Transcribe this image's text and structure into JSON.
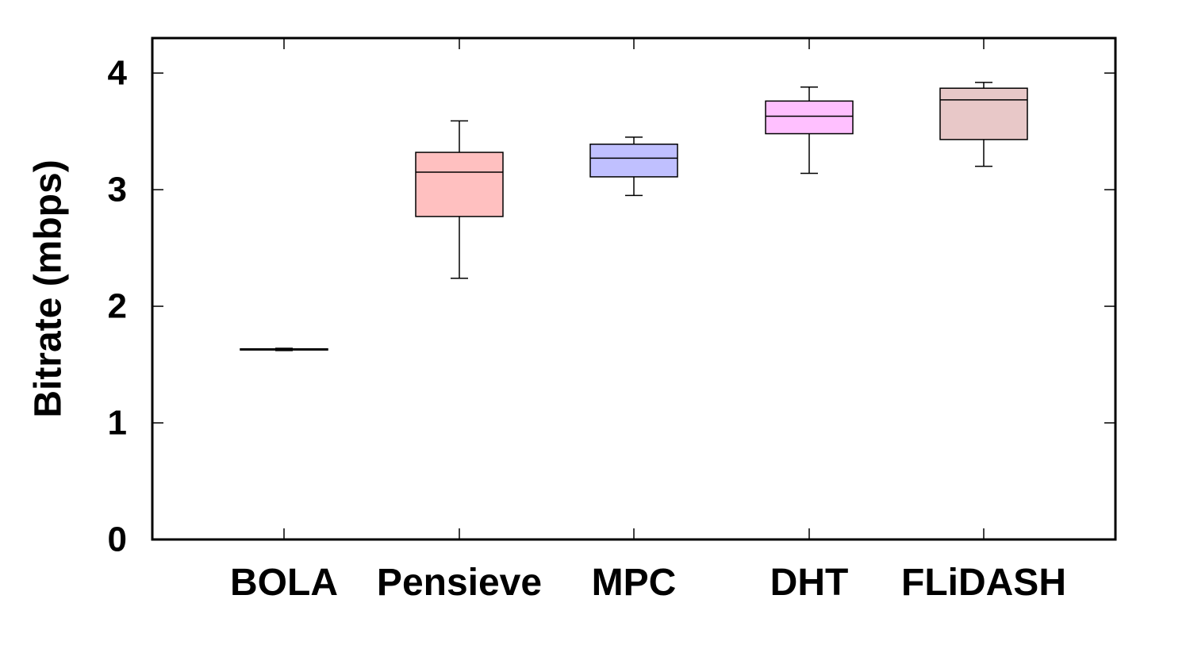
{
  "chart_data": {
    "type": "box",
    "title": "",
    "xlabel": "",
    "ylabel": "Bitrate (mbps)",
    "ylim": [
      0,
      4.3
    ],
    "yticks": [
      "0",
      "1",
      "2",
      "3",
      "4"
    ],
    "grid": false,
    "legend": "none",
    "categories": [
      "BOLA",
      "Pensieve",
      "MPC",
      "DHT",
      "FLiDASH"
    ],
    "boxes": [
      {
        "category": "BOLA",
        "min": 1.62,
        "q1": 1.625,
        "median": 1.63,
        "q3": 1.635,
        "max": 1.64,
        "color": "#ffffff"
      },
      {
        "category": "Pensieve",
        "min": 2.24,
        "q1": 2.77,
        "median": 3.15,
        "q3": 3.32,
        "max": 3.59,
        "color": "#ffc0c0"
      },
      {
        "category": "MPC",
        "min": 2.95,
        "q1": 3.11,
        "median": 3.27,
        "q3": 3.39,
        "max": 3.45,
        "color": "#c0c0ff"
      },
      {
        "category": "DHT",
        "min": 3.14,
        "q1": 3.48,
        "median": 3.63,
        "q3": 3.76,
        "max": 3.88,
        "color": "#ffc0ff"
      },
      {
        "category": "FLiDASH",
        "min": 3.2,
        "q1": 3.43,
        "median": 3.77,
        "q3": 3.87,
        "max": 3.92,
        "color": "#e8c8c8"
      }
    ]
  }
}
